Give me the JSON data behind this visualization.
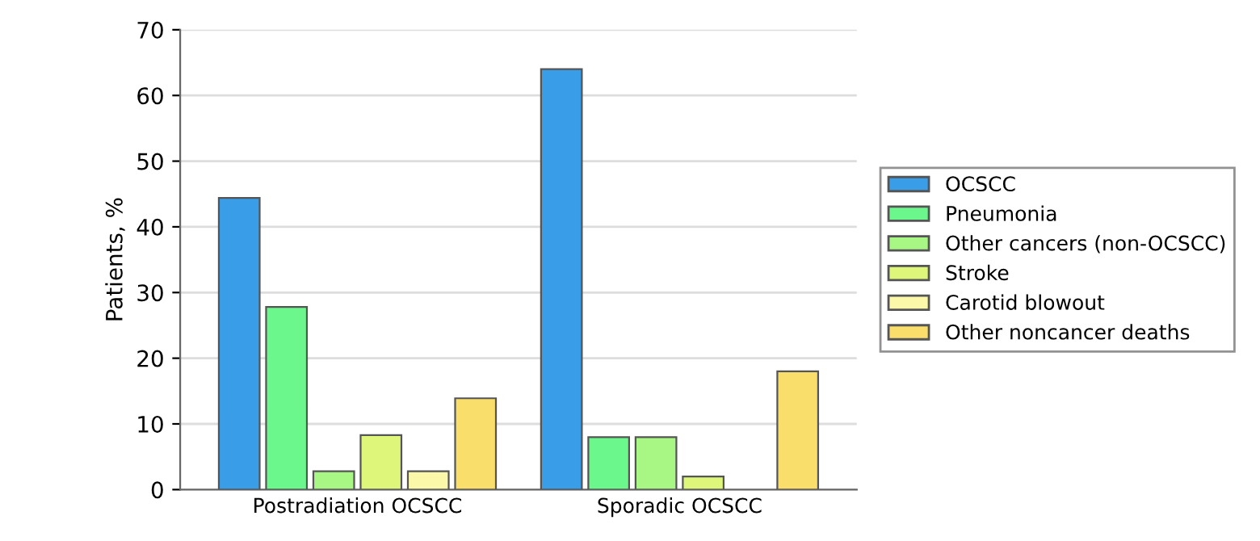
{
  "chart_data": {
    "type": "bar",
    "ylabel": "Patients, %",
    "categories": [
      "Postradiation OCSCC",
      "Sporadic OCSCC"
    ],
    "series": [
      {
        "name": "OCSCC",
        "color": "#3a9de8",
        "values": [
          44.4,
          64
        ]
      },
      {
        "name": "Pneumonia",
        "color": "#6cf78c",
        "values": [
          27.8,
          8
        ]
      },
      {
        "name": "Other cancers (non-OCSCC)",
        "color": "#a8f784",
        "values": [
          2.8,
          8
        ]
      },
      {
        "name": "Stroke",
        "color": "#def77a",
        "values": [
          8.3,
          2
        ]
      },
      {
        "name": "Carotid blowout",
        "color": "#fcf8aa",
        "values": [
          2.8,
          null
        ]
      },
      {
        "name": "Other noncancer deaths",
        "color": "#f9de6c",
        "values": [
          13.9,
          18
        ]
      }
    ],
    "ylim": [
      0,
      70
    ],
    "yticks": [
      0,
      10,
      20,
      30,
      40,
      50,
      60,
      70
    ],
    "grid": "y",
    "legend": "right"
  }
}
